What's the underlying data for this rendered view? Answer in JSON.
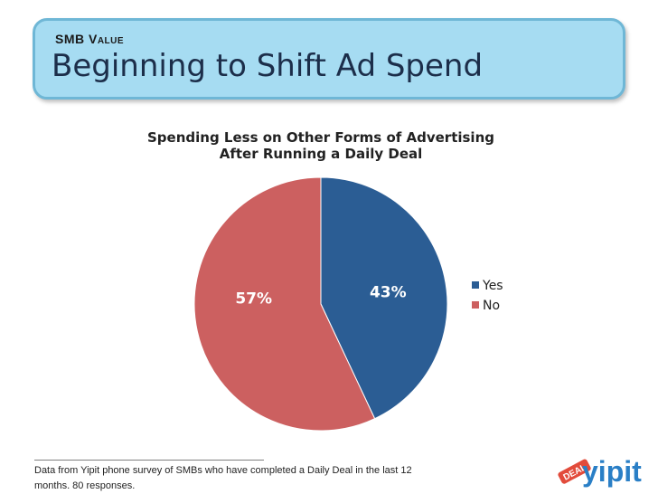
{
  "header": {
    "kicker": "SMB Value",
    "title": "Beginning to Shift Ad Spend"
  },
  "chart_data": {
    "type": "pie",
    "title": "Spending Less on Other Forms of Advertising",
    "subtitle": "After Running a Daily Deal",
    "categories": [
      "Yes",
      "No"
    ],
    "values": [
      43,
      57
    ],
    "data_labels": [
      "43%",
      "57%"
    ],
    "colors": [
      "#2b5d94",
      "#cc6060"
    ],
    "legend_position": "right"
  },
  "footnote": {
    "text": "Data from Yipit phone survey of SMBs who have completed a Daily Deal in the last 12 months. 80 responses."
  },
  "logo": {
    "badge_text": "DEAL",
    "brand_text": "yipit",
    "colors": {
      "badge": "#e24b3b",
      "brand": "#2a7fc6"
    }
  }
}
